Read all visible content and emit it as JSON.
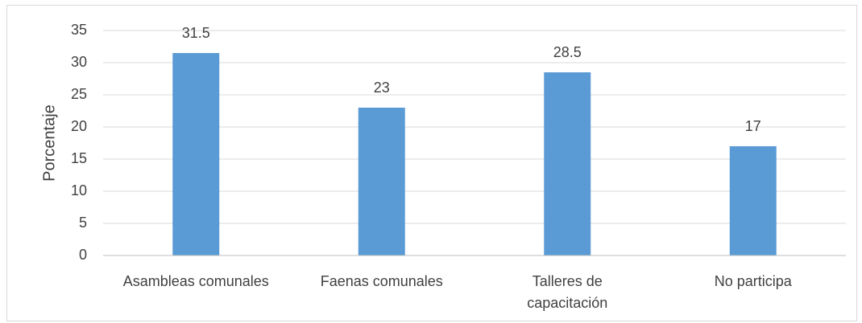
{
  "chart_data": {
    "type": "bar",
    "y_label": "Porcentaje",
    "categories": [
      "Asambleas comunales",
      "Faenas comunales",
      "Talleres de capacitación",
      "No participa"
    ],
    "values": [
      31.5,
      23,
      28.5,
      17
    ],
    "color": "#5b9bd5",
    "ylim": [
      0,
      35
    ],
    "yticks": [
      0,
      5,
      10,
      15,
      20,
      25,
      30,
      35
    ],
    "grid": true
  }
}
